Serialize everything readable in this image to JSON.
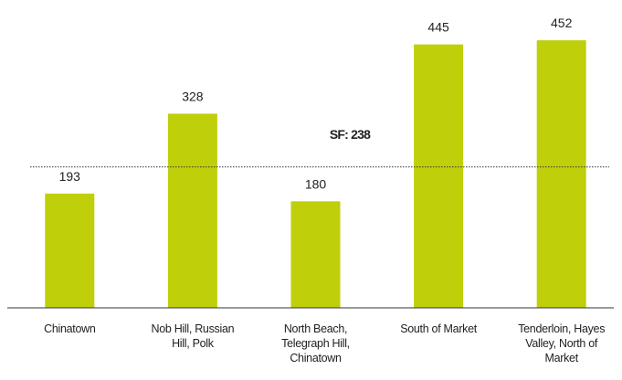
{
  "chart_data": {
    "type": "bar",
    "categories": [
      "Chinatown",
      "Nob Hill, Russian Hill, Polk",
      "North Beach, Telegraph Hill, Chinatown",
      "South of Market",
      "Tenderloin, Hayes Valley, North of Market"
    ],
    "values": [
      193,
      328,
      180,
      445,
      452
    ],
    "color": "#bfcf0a",
    "ylim": [
      0,
      500
    ],
    "reference_line": {
      "value": 238,
      "label": "SF: 238"
    }
  }
}
